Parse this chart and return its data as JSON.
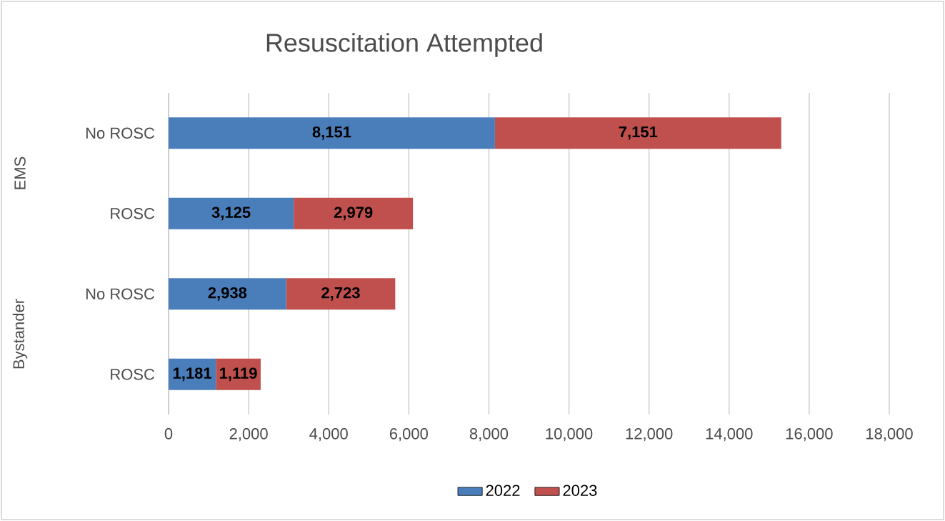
{
  "chart_data": {
    "type": "bar",
    "orientation": "horizontal",
    "stacked": true,
    "title": "Resuscitation Attempted",
    "categories": [
      "No ROSC",
      "ROSC",
      "No ROSC",
      "ROSC"
    ],
    "series": [
      {
        "name": "2022",
        "color": "#4a7ebb",
        "values": [
          8151,
          3125,
          2938,
          1181
        ],
        "value_labels": [
          "8,151",
          "3,125",
          "2,938",
          "1,181"
        ]
      },
      {
        "name": "2023",
        "color": "#c0504d",
        "values": [
          7151,
          2979,
          2723,
          1119
        ],
        "value_labels": [
          "7,151",
          "2,979",
          "2,723",
          "1,119"
        ]
      }
    ],
    "annotations": [
      "EMS",
      "Bystander"
    ],
    "xlim": [
      0,
      18000
    ],
    "xticks": [
      0,
      {
        "value": 2000,
        "label": "2,000"
      },
      {
        "value": 4000,
        "label": "4,000"
      },
      {
        "value": 6000,
        "label": "6,000"
      },
      {
        "value": 8000,
        "label": "8,000"
      },
      {
        "value": 10000,
        "label": "10,000"
      },
      {
        "value": 12000,
        "label": "12,000"
      },
      {
        "value": 14000,
        "label": "14,000"
      },
      {
        "value": 16000,
        "label": "16,000"
      },
      {
        "value": 18000,
        "label": "18,000"
      }
    ],
    "grid": "x",
    "legend": "bottom"
  }
}
